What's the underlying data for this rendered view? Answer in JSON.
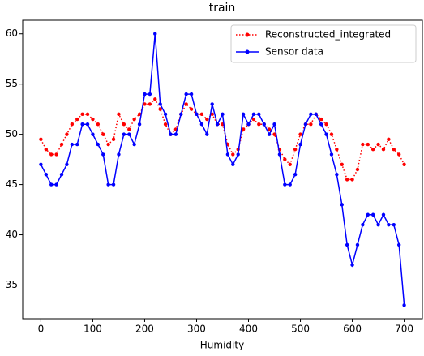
{
  "chart_data": {
    "type": "line",
    "title": "train",
    "xlabel": "Humidity",
    "x": [
      0,
      10,
      20,
      30,
      40,
      50,
      60,
      70,
      80,
      90,
      100,
      110,
      120,
      130,
      140,
      150,
      160,
      170,
      180,
      190,
      200,
      210,
      220,
      230,
      240,
      250,
      260,
      270,
      280,
      290,
      300,
      310,
      320,
      330,
      340,
      350,
      360,
      370,
      380,
      390,
      400,
      410,
      420,
      430,
      440,
      450,
      460,
      470,
      480,
      490,
      500,
      510,
      520,
      530,
      540,
      550,
      560,
      570,
      580,
      590,
      600,
      610,
      620,
      630,
      640,
      650,
      660,
      670,
      680,
      690,
      700
    ],
    "series": [
      {
        "name": "Reconstructed_integrated",
        "color": "#ff0000",
        "linestyle": "dotted",
        "values": [
          49.5,
          48.5,
          48,
          48,
          49,
          50,
          51,
          51.5,
          52,
          52,
          51.5,
          51,
          50,
          49,
          49.5,
          52,
          51,
          50.5,
          51.5,
          52,
          53,
          53,
          53.5,
          52.5,
          51,
          50,
          50.5,
          52,
          53,
          52.5,
          52,
          52,
          51.5,
          52,
          51,
          51,
          49,
          48,
          48.5,
          50.5,
          51,
          51.5,
          51,
          51,
          50.5,
          50,
          48.5,
          47.5,
          47,
          48.5,
          50,
          51,
          51,
          52,
          51.5,
          51,
          50,
          48.5,
          47,
          45.5,
          45.5,
          46.5,
          49,
          49,
          48.5,
          49,
          48.5,
          49.5,
          48.5,
          48,
          47
        ]
      },
      {
        "name": "Sensor data",
        "color": "#0000ff",
        "linestyle": "solid",
        "values": [
          47,
          46,
          45,
          45,
          46,
          47,
          49,
          49,
          51,
          51,
          50,
          49,
          48,
          45,
          45,
          48,
          50,
          50,
          49,
          51,
          54,
          54,
          60,
          53,
          52,
          50,
          50,
          52,
          54,
          54,
          52,
          51,
          50,
          53,
          51,
          52,
          48,
          47,
          48,
          52,
          51,
          52,
          52,
          51,
          50,
          51,
          48,
          45,
          45,
          46,
          49,
          51,
          52,
          52,
          51,
          50,
          48,
          46,
          43,
          39,
          37,
          39,
          41,
          42,
          42,
          41,
          42,
          41,
          41,
          39,
          33
        ]
      }
    ],
    "xlim": [
      -35,
      735
    ],
    "xticks": [
      0,
      100,
      200,
      300,
      400,
      500,
      600,
      700
    ],
    "ylim": [
      31.65,
      61.35
    ],
    "yticks": [
      35,
      40,
      45,
      50,
      55,
      60
    ],
    "legend": "upper right"
  }
}
